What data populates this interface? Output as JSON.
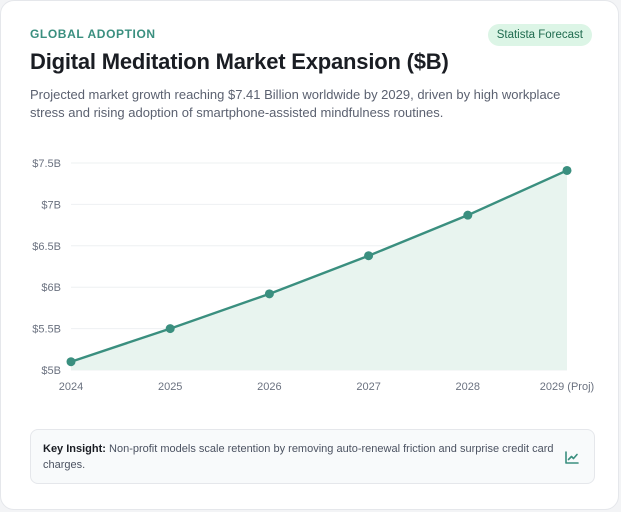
{
  "header": {
    "eyebrow": "GLOBAL ADOPTION",
    "badge": "Statista Forecast",
    "title": "Digital Meditation Market Expansion ($B)",
    "subtitle": "Projected market growth reaching $7.41 Billion worldwide by 2029, driven by high workplace stress and rising adoption of smartphone-assisted mindfulness routines."
  },
  "chart_data": {
    "type": "area",
    "categories": [
      "2024",
      "2025",
      "2026",
      "2027",
      "2028",
      "2029 (Proj)"
    ],
    "series": [
      {
        "values": [
          5.1,
          5.5,
          5.92,
          6.38,
          6.87,
          7.41
        ]
      }
    ],
    "yticks": [
      "$5B",
      "$5.5B",
      "$6B",
      "$6.5B",
      "$7B",
      "$7.5B"
    ],
    "ytick_values": [
      5,
      5.5,
      6,
      6.5,
      7,
      7.5
    ],
    "ylim": [
      5,
      7.5
    ],
    "grid": true,
    "colors": {
      "line": "#3a8f7f",
      "fill": "#e8f4ef",
      "grid": "#eef0f2",
      "tick": "#6b7280"
    }
  },
  "insight": {
    "label": "Key Insight:",
    "text": " Non-profit models scale retention by removing auto-renewal friction and surprise credit card charges.",
    "icon": "trending-up-icon"
  }
}
